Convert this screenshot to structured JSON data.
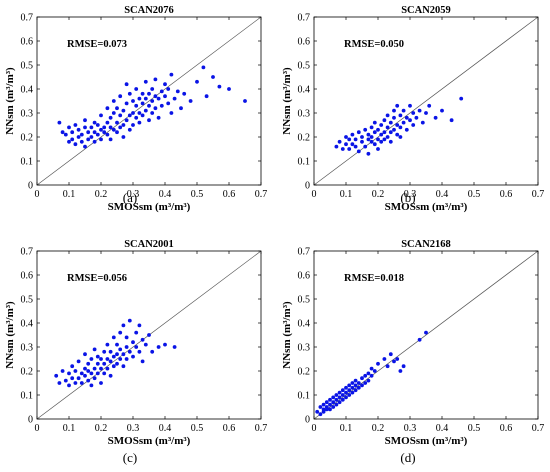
{
  "figure": {
    "panels": [
      {
        "title": "SCAN2076",
        "annotation": "RMSE=0.073",
        "caption": "(a)",
        "xlabel": "SMOSsm (m³/m³)",
        "ylabel": "NNsm (m³/m³)"
      },
      {
        "title": "SCAN2059",
        "annotation": "RMSE=0.050",
        "caption": "(b)",
        "xlabel": "SMOSsm (m³/m³)",
        "ylabel": "NNsm (m³/m³)"
      },
      {
        "title": "SCAN2001",
        "annotation": "RMSE=0.056",
        "caption": "(c)",
        "xlabel": "SMOSsm (m³/m³)",
        "ylabel": "NNsm (m³/m³)"
      },
      {
        "title": "SCAN2168",
        "annotation": "RMSE=0.018",
        "caption": "(d)",
        "xlabel": "SMOSsm (m³/m³)",
        "ylabel": "NNsm (m³/m³)"
      }
    ]
  },
  "chart_data": [
    {
      "type": "scatter",
      "title": "SCAN2076",
      "xlabel": "SMOSsm (m³/m³)",
      "ylabel": "NNsm (m³/m³)",
      "xlim": [
        0,
        0.7
      ],
      "ylim": [
        0,
        0.7
      ],
      "xticks": [
        0,
        0.1,
        0.2,
        0.3,
        0.4,
        0.5,
        0.6,
        0.7
      ],
      "yticks": [
        0,
        0.1,
        0.2,
        0.3,
        0.4,
        0.5,
        0.6,
        0.7
      ],
      "tick_labels": [
        "0",
        "0.1",
        "0.2",
        "0.3",
        "0.4",
        "0.5",
        "0.6",
        "0.7"
      ],
      "reference_line": "1:1",
      "marker_color": "#0a14e6",
      "grid": false,
      "annotation": "RMSE=0.073",
      "points": [
        [
          0.07,
          0.26
        ],
        [
          0.08,
          0.22
        ],
        [
          0.09,
          0.21
        ],
        [
          0.1,
          0.18
        ],
        [
          0.1,
          0.24
        ],
        [
          0.11,
          0.19
        ],
        [
          0.11,
          0.22
        ],
        [
          0.12,
          0.17
        ],
        [
          0.12,
          0.25
        ],
        [
          0.13,
          0.2
        ],
        [
          0.13,
          0.23
        ],
        [
          0.14,
          0.18
        ],
        [
          0.14,
          0.21
        ],
        [
          0.15,
          0.16
        ],
        [
          0.15,
          0.24
        ],
        [
          0.15,
          0.27
        ],
        [
          0.16,
          0.19
        ],
        [
          0.16,
          0.22
        ],
        [
          0.17,
          0.2
        ],
        [
          0.17,
          0.24
        ],
        [
          0.18,
          0.18
        ],
        [
          0.18,
          0.22
        ],
        [
          0.18,
          0.26
        ],
        [
          0.19,
          0.21
        ],
        [
          0.19,
          0.25
        ],
        [
          0.2,
          0.23
        ],
        [
          0.2,
          0.19
        ],
        [
          0.2,
          0.29
        ],
        [
          0.21,
          0.24
        ],
        [
          0.21,
          0.22
        ],
        [
          0.22,
          0.26
        ],
        [
          0.22,
          0.21
        ],
        [
          0.22,
          0.32
        ],
        [
          0.23,
          0.24
        ],
        [
          0.23,
          0.28
        ],
        [
          0.23,
          0.19
        ],
        [
          0.24,
          0.23
        ],
        [
          0.24,
          0.3
        ],
        [
          0.24,
          0.35
        ],
        [
          0.25,
          0.26
        ],
        [
          0.25,
          0.22
        ],
        [
          0.25,
          0.32
        ],
        [
          0.26,
          0.24
        ],
        [
          0.26,
          0.29
        ],
        [
          0.26,
          0.37
        ],
        [
          0.27,
          0.25
        ],
        [
          0.27,
          0.31
        ],
        [
          0.27,
          0.2
        ],
        [
          0.28,
          0.27
        ],
        [
          0.28,
          0.34
        ],
        [
          0.28,
          0.42
        ],
        [
          0.29,
          0.29
        ],
        [
          0.29,
          0.23
        ],
        [
          0.29,
          0.38
        ],
        [
          0.3,
          0.3
        ],
        [
          0.3,
          0.35
        ],
        [
          0.3,
          0.25
        ],
        [
          0.31,
          0.33
        ],
        [
          0.31,
          0.28
        ],
        [
          0.31,
          0.4
        ],
        [
          0.32,
          0.36
        ],
        [
          0.32,
          0.3
        ],
        [
          0.32,
          0.26
        ],
        [
          0.33,
          0.34
        ],
        [
          0.33,
          0.38
        ],
        [
          0.33,
          0.29
        ],
        [
          0.34,
          0.36
        ],
        [
          0.34,
          0.31
        ],
        [
          0.34,
          0.43
        ],
        [
          0.35,
          0.33
        ],
        [
          0.35,
          0.38
        ],
        [
          0.35,
          0.27
        ],
        [
          0.36,
          0.35
        ],
        [
          0.36,
          0.4
        ],
        [
          0.36,
          0.3
        ],
        [
          0.37,
          0.37
        ],
        [
          0.37,
          0.32
        ],
        [
          0.37,
          0.44
        ],
        [
          0.38,
          0.36
        ],
        [
          0.38,
          0.28
        ],
        [
          0.39,
          0.39
        ],
        [
          0.39,
          0.33
        ],
        [
          0.4,
          0.37
        ],
        [
          0.4,
          0.42
        ],
        [
          0.41,
          0.34
        ],
        [
          0.41,
          0.4
        ],
        [
          0.42,
          0.46
        ],
        [
          0.42,
          0.3
        ],
        [
          0.43,
          0.36
        ],
        [
          0.44,
          0.39
        ],
        [
          0.45,
          0.32
        ],
        [
          0.46,
          0.38
        ],
        [
          0.48,
          0.35
        ],
        [
          0.5,
          0.43
        ],
        [
          0.52,
          0.49
        ],
        [
          0.53,
          0.37
        ],
        [
          0.55,
          0.45
        ],
        [
          0.57,
          0.41
        ],
        [
          0.6,
          0.4
        ],
        [
          0.65,
          0.35
        ]
      ]
    },
    {
      "type": "scatter",
      "title": "SCAN2059",
      "xlabel": "SMOSsm (m³/m³)",
      "ylabel": "NNsm (m³/m³)",
      "xlim": [
        0,
        0.7
      ],
      "ylim": [
        0,
        0.7
      ],
      "xticks": [
        0,
        0.1,
        0.2,
        0.3,
        0.4,
        0.5,
        0.6,
        0.7
      ],
      "yticks": [
        0,
        0.1,
        0.2,
        0.3,
        0.4,
        0.5,
        0.6,
        0.7
      ],
      "tick_labels": [
        "0",
        "0.1",
        "0.2",
        "0.3",
        "0.4",
        "0.5",
        "0.6",
        "0.7"
      ],
      "reference_line": "1:1",
      "marker_color": "#0a14e6",
      "grid": false,
      "annotation": "RMSE=0.050",
      "points": [
        [
          0.07,
          0.16
        ],
        [
          0.08,
          0.18
        ],
        [
          0.09,
          0.15
        ],
        [
          0.1,
          0.17
        ],
        [
          0.1,
          0.2
        ],
        [
          0.11,
          0.15
        ],
        [
          0.11,
          0.19
        ],
        [
          0.12,
          0.17
        ],
        [
          0.12,
          0.21
        ],
        [
          0.13,
          0.16
        ],
        [
          0.13,
          0.19
        ],
        [
          0.14,
          0.14
        ],
        [
          0.14,
          0.22
        ],
        [
          0.15,
          0.18
        ],
        [
          0.15,
          0.2
        ],
        [
          0.16,
          0.16
        ],
        [
          0.16,
          0.23
        ],
        [
          0.17,
          0.19
        ],
        [
          0.17,
          0.21
        ],
        [
          0.17,
          0.13
        ],
        [
          0.18,
          0.18
        ],
        [
          0.18,
          0.24
        ],
        [
          0.18,
          0.2
        ],
        [
          0.19,
          0.17
        ],
        [
          0.19,
          0.22
        ],
        [
          0.19,
          0.26
        ],
        [
          0.2,
          0.19
        ],
        [
          0.2,
          0.23
        ],
        [
          0.2,
          0.15
        ],
        [
          0.21,
          0.21
        ],
        [
          0.21,
          0.25
        ],
        [
          0.21,
          0.18
        ],
        [
          0.22,
          0.22
        ],
        [
          0.22,
          0.27
        ],
        [
          0.22,
          0.19
        ],
        [
          0.23,
          0.24
        ],
        [
          0.23,
          0.2
        ],
        [
          0.23,
          0.29
        ],
        [
          0.24,
          0.22
        ],
        [
          0.24,
          0.26
        ],
        [
          0.24,
          0.18
        ],
        [
          0.25,
          0.23
        ],
        [
          0.25,
          0.28
        ],
        [
          0.25,
          0.31
        ],
        [
          0.26,
          0.21
        ],
        [
          0.26,
          0.25
        ],
        [
          0.26,
          0.33
        ],
        [
          0.27,
          0.24
        ],
        [
          0.27,
          0.29
        ],
        [
          0.27,
          0.2
        ],
        [
          0.28,
          0.26
        ],
        [
          0.28,
          0.31
        ],
        [
          0.29,
          0.23
        ],
        [
          0.29,
          0.28
        ],
        [
          0.3,
          0.27
        ],
        [
          0.3,
          0.33
        ],
        [
          0.31,
          0.25
        ],
        [
          0.31,
          0.3
        ],
        [
          0.32,
          0.28
        ],
        [
          0.33,
          0.31
        ],
        [
          0.34,
          0.26
        ],
        [
          0.35,
          0.3
        ],
        [
          0.36,
          0.33
        ],
        [
          0.38,
          0.28
        ],
        [
          0.4,
          0.31
        ],
        [
          0.43,
          0.27
        ],
        [
          0.46,
          0.36
        ]
      ]
    },
    {
      "type": "scatter",
      "title": "SCAN2001",
      "xlabel": "SMOSsm (m³/m³)",
      "ylabel": "NNsm (m³/m³)",
      "xlim": [
        0,
        0.7
      ],
      "ylim": [
        0,
        0.7
      ],
      "xticks": [
        0,
        0.1,
        0.2,
        0.3,
        0.4,
        0.5,
        0.6,
        0.7
      ],
      "yticks": [
        0,
        0.1,
        0.2,
        0.3,
        0.4,
        0.5,
        0.6,
        0.7
      ],
      "tick_labels": [
        "0",
        "0.1",
        "0.2",
        "0.3",
        "0.4",
        "0.5",
        "0.6",
        "0.7"
      ],
      "reference_line": "1:1",
      "marker_color": "#0a14e6",
      "grid": false,
      "annotation": "RMSE=0.056",
      "points": [
        [
          0.06,
          0.18
        ],
        [
          0.07,
          0.15
        ],
        [
          0.08,
          0.2
        ],
        [
          0.09,
          0.16
        ],
        [
          0.1,
          0.14
        ],
        [
          0.1,
          0.19
        ],
        [
          0.11,
          0.17
        ],
        [
          0.11,
          0.22
        ],
        [
          0.12,
          0.15
        ],
        [
          0.12,
          0.2
        ],
        [
          0.13,
          0.17
        ],
        [
          0.13,
          0.24
        ],
        [
          0.14,
          0.19
        ],
        [
          0.14,
          0.15
        ],
        [
          0.15,
          0.21
        ],
        [
          0.15,
          0.18
        ],
        [
          0.15,
          0.27
        ],
        [
          0.16,
          0.2
        ],
        [
          0.16,
          0.16
        ],
        [
          0.16,
          0.23
        ],
        [
          0.17,
          0.19
        ],
        [
          0.17,
          0.25
        ],
        [
          0.17,
          0.14
        ],
        [
          0.18,
          0.21
        ],
        [
          0.18,
          0.17
        ],
        [
          0.18,
          0.29
        ],
        [
          0.19,
          0.23
        ],
        [
          0.19,
          0.19
        ],
        [
          0.19,
          0.26
        ],
        [
          0.2,
          0.21
        ],
        [
          0.2,
          0.25
        ],
        [
          0.2,
          0.15
        ],
        [
          0.21,
          0.23
        ],
        [
          0.21,
          0.28
        ],
        [
          0.21,
          0.19
        ],
        [
          0.22,
          0.25
        ],
        [
          0.22,
          0.21
        ],
        [
          0.22,
          0.31
        ],
        [
          0.23,
          0.24
        ],
        [
          0.23,
          0.28
        ],
        [
          0.23,
          0.18
        ],
        [
          0.24,
          0.26
        ],
        [
          0.24,
          0.22
        ],
        [
          0.24,
          0.34
        ],
        [
          0.25,
          0.27
        ],
        [
          0.25,
          0.23
        ],
        [
          0.25,
          0.31
        ],
        [
          0.26,
          0.25
        ],
        [
          0.26,
          0.29
        ],
        [
          0.26,
          0.36
        ],
        [
          0.27,
          0.27
        ],
        [
          0.27,
          0.22
        ],
        [
          0.27,
          0.39
        ],
        [
          0.28,
          0.3
        ],
        [
          0.28,
          0.25
        ],
        [
          0.28,
          0.34
        ],
        [
          0.29,
          0.28
        ],
        [
          0.29,
          0.41
        ],
        [
          0.3,
          0.32
        ],
        [
          0.3,
          0.26
        ],
        [
          0.31,
          0.3
        ],
        [
          0.31,
          0.36
        ],
        [
          0.32,
          0.28
        ],
        [
          0.32,
          0.39
        ],
        [
          0.33,
          0.33
        ],
        [
          0.33,
          0.24
        ],
        [
          0.34,
          0.31
        ],
        [
          0.35,
          0.35
        ],
        [
          0.36,
          0.28
        ],
        [
          0.38,
          0.3
        ],
        [
          0.4,
          0.31
        ],
        [
          0.43,
          0.3
        ]
      ]
    },
    {
      "type": "scatter",
      "title": "SCAN2168",
      "xlabel": "SMOSsm (m³/m³)",
      "ylabel": "NNsm (m³/m³)",
      "xlim": [
        0,
        0.7
      ],
      "ylim": [
        0,
        0.7
      ],
      "xticks": [
        0,
        0.1,
        0.2,
        0.3,
        0.4,
        0.5,
        0.6,
        0.7
      ],
      "yticks": [
        0,
        0.1,
        0.2,
        0.3,
        0.4,
        0.5,
        0.6,
        0.7
      ],
      "tick_labels": [
        "0",
        "0.1",
        "0.2",
        "0.3",
        "0.4",
        "0.5",
        "0.6",
        "0.7"
      ],
      "reference_line": "1:1",
      "marker_color": "#0a14e6",
      "grid": false,
      "annotation": "RMSE=0.018",
      "points": [
        [
          0.01,
          0.03
        ],
        [
          0.02,
          0.05
        ],
        [
          0.02,
          0.02
        ],
        [
          0.03,
          0.04
        ],
        [
          0.03,
          0.06
        ],
        [
          0.03,
          0.03
        ],
        [
          0.04,
          0.05
        ],
        [
          0.04,
          0.07
        ],
        [
          0.04,
          0.04
        ],
        [
          0.05,
          0.06
        ],
        [
          0.05,
          0.04
        ],
        [
          0.05,
          0.08
        ],
        [
          0.06,
          0.05
        ],
        [
          0.06,
          0.07
        ],
        [
          0.06,
          0.09
        ],
        [
          0.07,
          0.06
        ],
        [
          0.07,
          0.08
        ],
        [
          0.07,
          0.1
        ],
        [
          0.08,
          0.07
        ],
        [
          0.08,
          0.09
        ],
        [
          0.08,
          0.11
        ],
        [
          0.09,
          0.08
        ],
        [
          0.09,
          0.1
        ],
        [
          0.09,
          0.12
        ],
        [
          0.1,
          0.09
        ],
        [
          0.1,
          0.11
        ],
        [
          0.1,
          0.13
        ],
        [
          0.11,
          0.1
        ],
        [
          0.11,
          0.12
        ],
        [
          0.11,
          0.14
        ],
        [
          0.12,
          0.11
        ],
        [
          0.12,
          0.13
        ],
        [
          0.12,
          0.15
        ],
        [
          0.13,
          0.12
        ],
        [
          0.13,
          0.14
        ],
        [
          0.13,
          0.16
        ],
        [
          0.14,
          0.13
        ],
        [
          0.14,
          0.15
        ],
        [
          0.15,
          0.14
        ],
        [
          0.15,
          0.17
        ],
        [
          0.16,
          0.15
        ],
        [
          0.16,
          0.18
        ],
        [
          0.17,
          0.16
        ],
        [
          0.17,
          0.19
        ],
        [
          0.18,
          0.18
        ],
        [
          0.18,
          0.21
        ],
        [
          0.19,
          0.2
        ],
        [
          0.2,
          0.23
        ],
        [
          0.22,
          0.25
        ],
        [
          0.23,
          0.22
        ],
        [
          0.24,
          0.27
        ],
        [
          0.25,
          0.24
        ],
        [
          0.26,
          0.25
        ],
        [
          0.27,
          0.2
        ],
        [
          0.28,
          0.22
        ],
        [
          0.33,
          0.33
        ],
        [
          0.35,
          0.36
        ]
      ]
    }
  ]
}
